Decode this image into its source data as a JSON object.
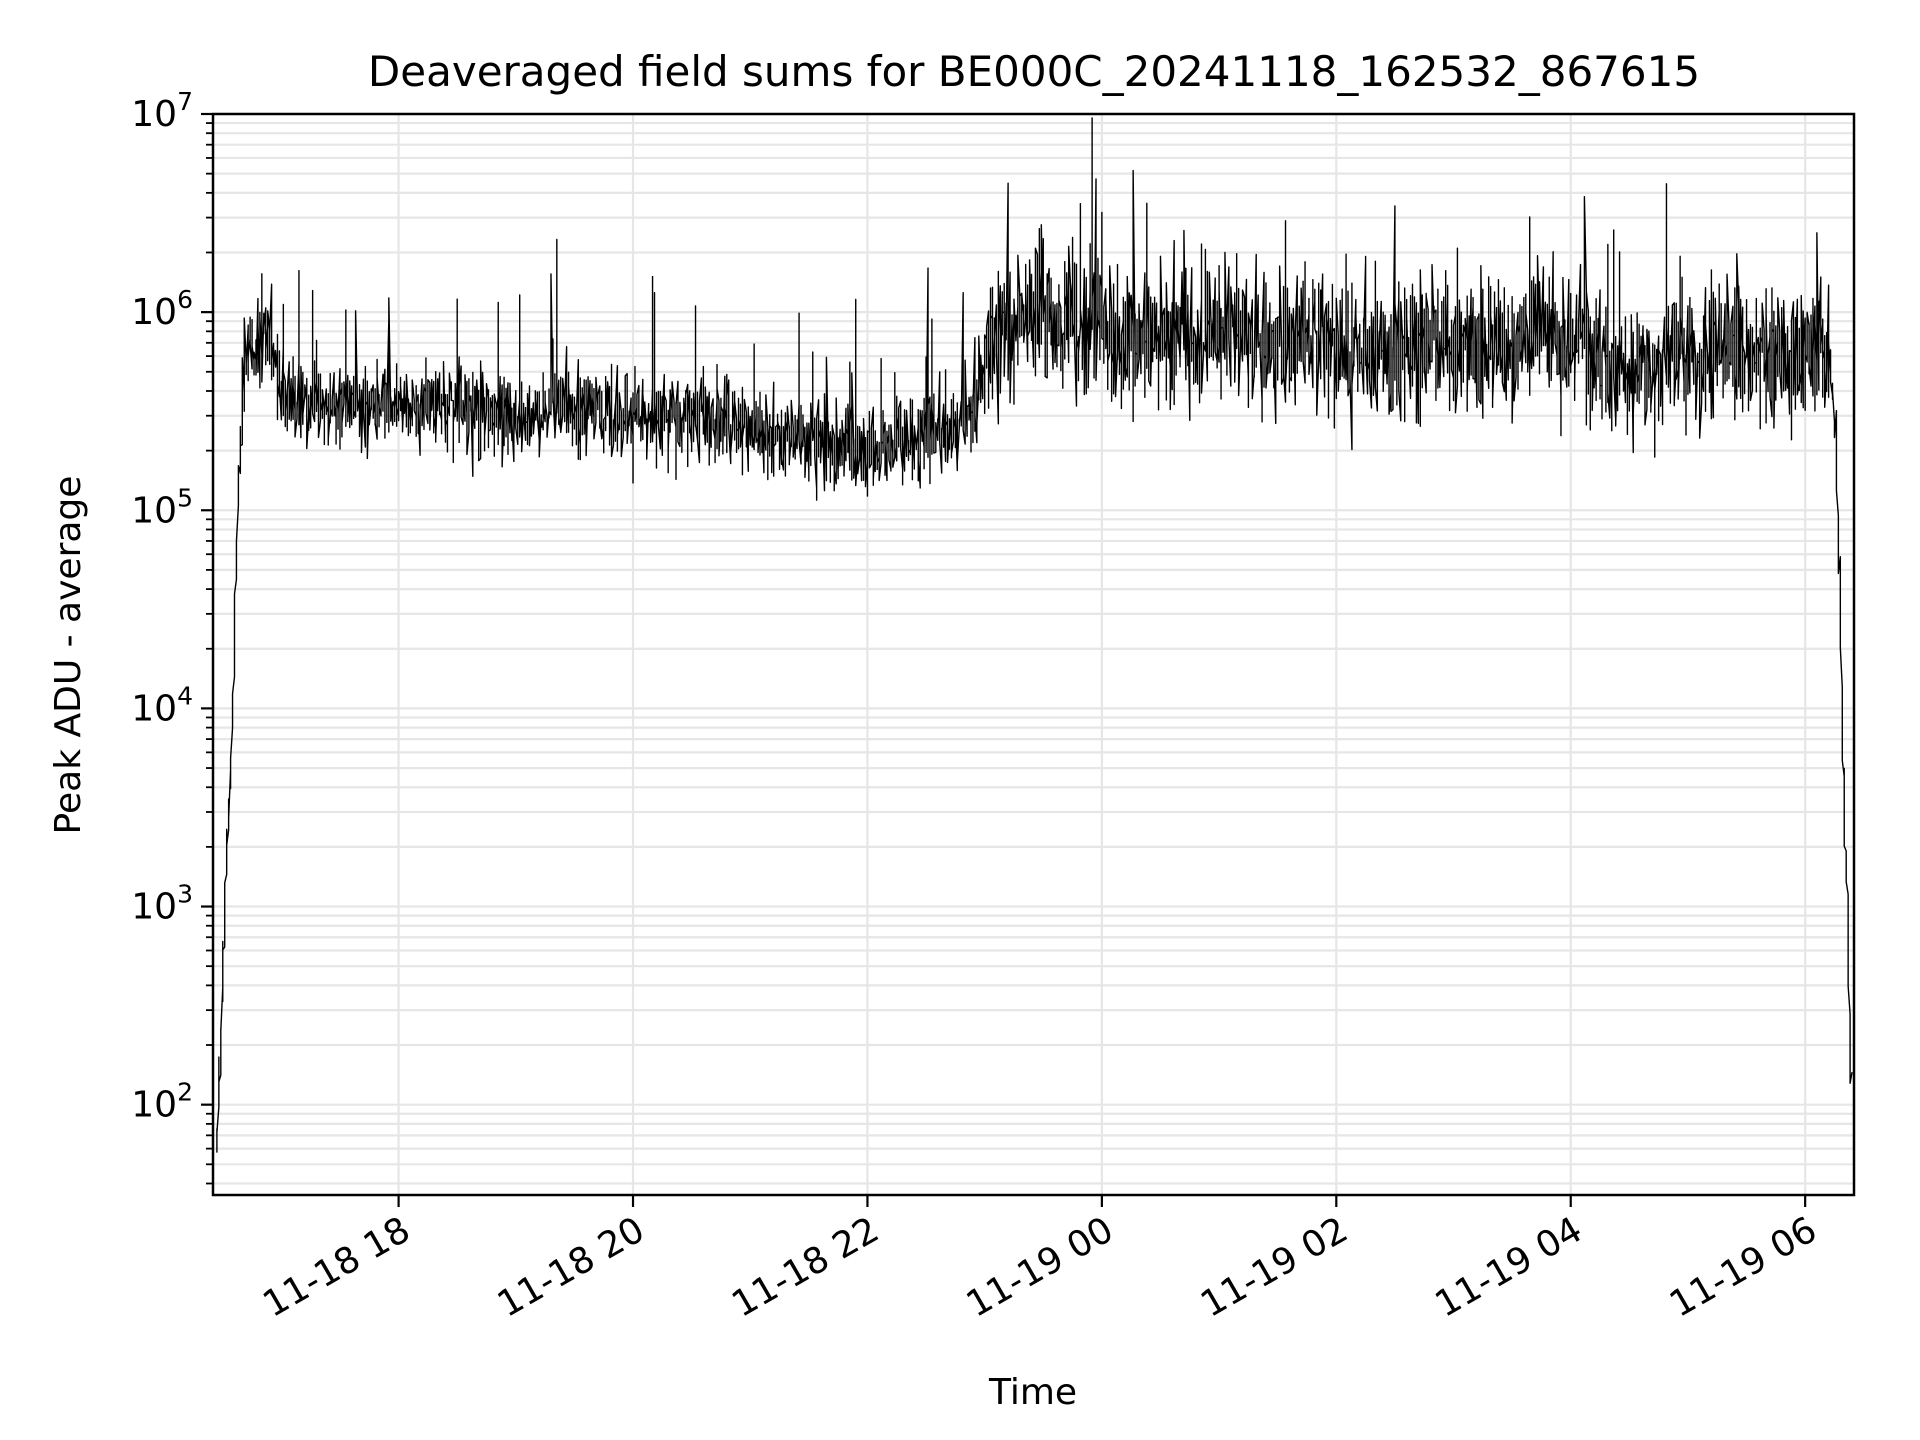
{
  "chart_data": {
    "type": "line",
    "title": "Deaveraged field sums for BE000C_20241118_162532_867615",
    "xlabel": "Time",
    "ylabel": "Peak ADU - average",
    "yscale": "log",
    "ylim": [
      35,
      10000000
    ],
    "xlim": [
      "2024-11-18 16:25",
      "2024-11-19 06:25"
    ],
    "grid": "on (major and minor)",
    "line_color": "#000000",
    "x_ticks": [
      {
        "label": "11-18 18",
        "value": "2024-11-18 18:00"
      },
      {
        "label": "11-18 20",
        "value": "2024-11-18 20:00"
      },
      {
        "label": "11-18 22",
        "value": "2024-11-18 22:00"
      },
      {
        "label": "11-19 00",
        "value": "2024-11-19 00:00"
      },
      {
        "label": "11-19 02",
        "value": "2024-11-19 02:00"
      },
      {
        "label": "11-19 04",
        "value": "2024-11-19 04:00"
      },
      {
        "label": "11-19 06",
        "value": "2024-11-19 06:00"
      }
    ],
    "y_ticks": [
      {
        "base": "10",
        "exp": "2",
        "value": 100
      },
      {
        "base": "10",
        "exp": "3",
        "value": 1000
      },
      {
        "base": "10",
        "exp": "4",
        "value": 10000
      },
      {
        "base": "10",
        "exp": "5",
        "value": 100000
      },
      {
        "base": "10",
        "exp": "6",
        "value": 1000000
      },
      {
        "base": "10",
        "exp": "7",
        "value": 10000000
      }
    ],
    "series": [
      {
        "x": [
          "2024-11-18 16:27",
          "2024-11-18 16:29",
          "2024-11-18 16:31",
          "2024-11-18 16:33",
          "2024-11-18 16:35",
          "2024-11-18 16:38",
          "2024-11-18 16:41",
          "2024-11-18 16:44",
          "2024-11-18 16:48",
          "2024-11-18 16:55",
          "2024-11-18 17:00",
          "2024-11-18 17:10",
          "2024-11-18 17:20",
          "2024-11-18 17:30",
          "2024-11-18 18:00",
          "2024-11-18 18:30",
          "2024-11-18 19:00",
          "2024-11-18 19:30",
          "2024-11-18 20:00",
          "2024-11-18 20:30",
          "2024-11-18 21:00",
          "2024-11-18 21:30",
          "2024-11-18 22:00",
          "2024-11-18 22:30",
          "2024-11-18 22:55",
          "2024-11-18 23:05",
          "2024-11-18 23:30",
          "2024-11-19 00:00",
          "2024-11-19 00:30",
          "2024-11-19 01:00",
          "2024-11-19 01:30",
          "2024-11-19 02:00",
          "2024-11-19 02:30",
          "2024-11-19 03:00",
          "2024-11-19 03:30",
          "2024-11-19 04:00",
          "2024-11-19 04:30",
          "2024-11-19 05:00",
          "2024-11-19 05:30",
          "2024-11-19 06:00",
          "2024-11-19 06:12",
          "2024-11-19 06:16",
          "2024-11-19 06:18",
          "2024-11-19 06:20",
          "2024-11-19 06:22",
          "2024-11-19 06:24"
        ],
        "y": [
          50,
          150,
          700,
          2500,
          5000,
          100000,
          400000,
          600000,
          700000,
          700000,
          400000,
          350000,
          350000,
          350000,
          320000,
          330000,
          300000,
          320000,
          300000,
          300000,
          260000,
          220000,
          200000,
          220000,
          300000,
          800000,
          1000000,
          800000,
          700000,
          800000,
          700000,
          700000,
          600000,
          700000,
          700000,
          800000,
          500000,
          600000,
          600000,
          600000,
          600000,
          300000,
          50000,
          5000,
          1000,
          130
        ]
      }
    ]
  }
}
